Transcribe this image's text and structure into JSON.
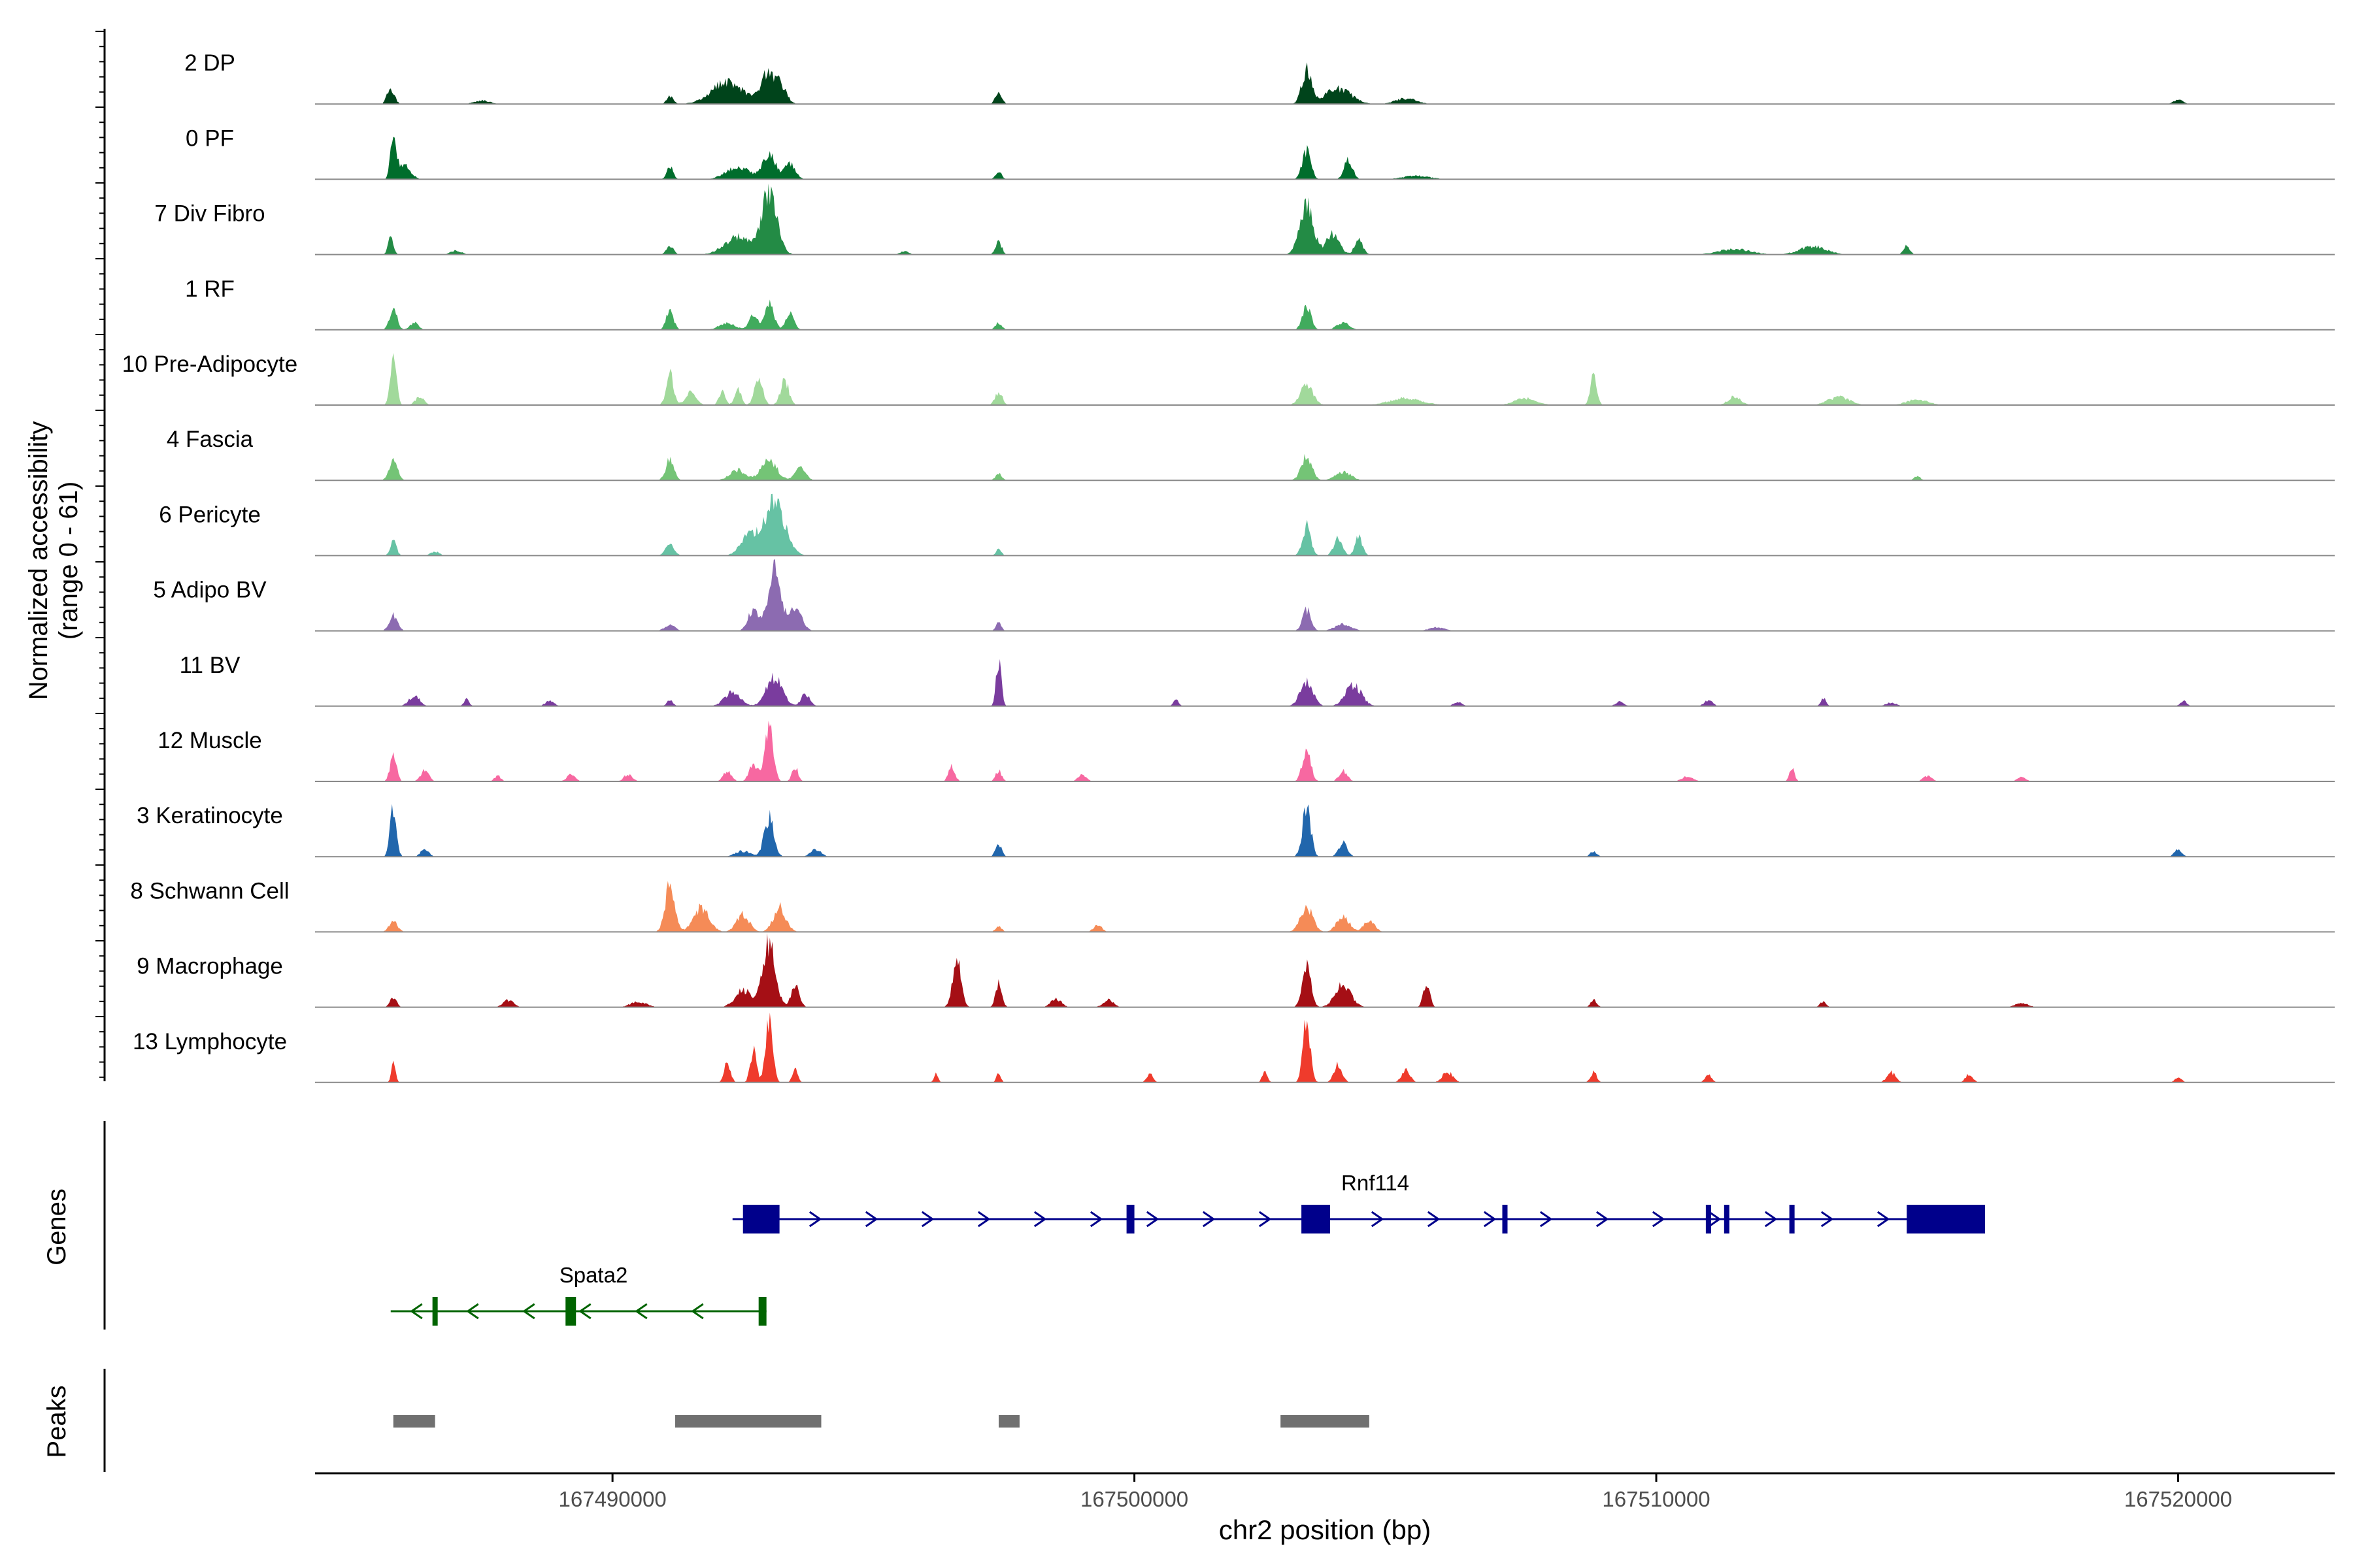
{
  "chart_data": {
    "type": "area",
    "title": "",
    "ylabel_line1": "Normalized accessibility",
    "ylabel_line2": "(range 0 - 61)",
    "y_range": [
      0,
      61
    ],
    "xlabel": "chr2 position (bp)",
    "xlim": [
      167484300,
      167523000
    ],
    "x_ticks": [
      167490000,
      167500000,
      167510000,
      167520000
    ],
    "x_tick_labels": [
      "167490000",
      "167500000",
      "167510000",
      "167520000"
    ],
    "tracks": [
      {
        "name": "2 DP",
        "color": "#00441b",
        "peaks": [
          [
            167485750,
            0.22,
            70
          ],
          [
            167487500,
            0.05,
            150
          ],
          [
            167491100,
            0.12,
            60
          ],
          [
            167492200,
            0.32,
            300
          ],
          [
            167492950,
            0.38,
            120
          ],
          [
            167493200,
            0.28,
            120
          ],
          [
            167497400,
            0.18,
            60
          ],
          [
            167503300,
            0.48,
            90
          ],
          [
            167503900,
            0.22,
            250
          ],
          [
            167505200,
            0.08,
            200
          ],
          [
            167520000,
            0.06,
            90
          ]
        ]
      },
      {
        "name": "0 PF",
        "color": "#006d2c",
        "peaks": [
          [
            167485800,
            0.7,
            50
          ],
          [
            167486000,
            0.22,
            120
          ],
          [
            167491100,
            0.18,
            60
          ],
          [
            167492400,
            0.18,
            220
          ],
          [
            167493000,
            0.38,
            120
          ],
          [
            167493400,
            0.22,
            100
          ],
          [
            167497400,
            0.1,
            60
          ],
          [
            167503300,
            0.42,
            80
          ],
          [
            167504100,
            0.28,
            80
          ],
          [
            167505400,
            0.05,
            250
          ]
        ]
      },
      {
        "name": "7 Div Fibro",
        "color": "#238b45",
        "peaks": [
          [
            167485750,
            0.25,
            50
          ],
          [
            167487000,
            0.06,
            100
          ],
          [
            167491100,
            0.12,
            70
          ],
          [
            167492400,
            0.25,
            250
          ],
          [
            167493000,
            0.85,
            150
          ],
          [
            167495600,
            0.05,
            80
          ],
          [
            167497400,
            0.18,
            60
          ],
          [
            167503300,
            0.72,
            130
          ],
          [
            167503800,
            0.3,
            120
          ],
          [
            167504300,
            0.2,
            80
          ],
          [
            167511500,
            0.08,
            300
          ],
          [
            167513000,
            0.12,
            250
          ],
          [
            167514800,
            0.12,
            60
          ]
        ]
      },
      {
        "name": "1 RF",
        "color": "#41ab5d",
        "peaks": [
          [
            167485800,
            0.32,
            70
          ],
          [
            167486200,
            0.1,
            80
          ],
          [
            167491100,
            0.28,
            70
          ],
          [
            167492200,
            0.1,
            150
          ],
          [
            167492700,
            0.22,
            80
          ],
          [
            167493000,
            0.38,
            90
          ],
          [
            167493400,
            0.22,
            80
          ],
          [
            167497400,
            0.1,
            60
          ],
          [
            167503300,
            0.35,
            80
          ],
          [
            167504000,
            0.1,
            120
          ]
        ]
      },
      {
        "name": "10 Pre-Adipocyte",
        "color": "#a1d99b",
        "peaks": [
          [
            167485800,
            0.65,
            60
          ],
          [
            167486300,
            0.12,
            80
          ],
          [
            167491100,
            0.45,
            70
          ],
          [
            167491500,
            0.18,
            100
          ],
          [
            167492100,
            0.2,
            60
          ],
          [
            167492400,
            0.25,
            60
          ],
          [
            167492800,
            0.35,
            80
          ],
          [
            167493300,
            0.35,
            80
          ],
          [
            167497400,
            0.18,
            70
          ],
          [
            167503300,
            0.3,
            120
          ],
          [
            167505200,
            0.1,
            300
          ],
          [
            167507500,
            0.1,
            200
          ],
          [
            167508800,
            0.42,
            60
          ],
          [
            167511500,
            0.12,
            120
          ],
          [
            167513500,
            0.12,
            200
          ],
          [
            167515000,
            0.08,
            200
          ]
        ]
      },
      {
        "name": "4 Fascia",
        "color": "#74c476",
        "peaks": [
          [
            167485800,
            0.28,
            80
          ],
          [
            167491100,
            0.3,
            80
          ],
          [
            167492400,
            0.15,
            150
          ],
          [
            167493000,
            0.28,
            150
          ],
          [
            167493600,
            0.18,
            100
          ],
          [
            167497400,
            0.1,
            60
          ],
          [
            167503300,
            0.35,
            100
          ],
          [
            167504000,
            0.12,
            150
          ],
          [
            167515000,
            0.06,
            60
          ]
        ]
      },
      {
        "name": "6 Pericyte",
        "color": "#66c2a4",
        "peaks": [
          [
            167485800,
            0.2,
            60
          ],
          [
            167486600,
            0.06,
            80
          ],
          [
            167491100,
            0.18,
            80
          ],
          [
            167492600,
            0.28,
            150
          ],
          [
            167493100,
            0.75,
            200
          ],
          [
            167497400,
            0.1,
            50
          ],
          [
            167503300,
            0.42,
            80
          ],
          [
            167503900,
            0.25,
            80
          ],
          [
            167504300,
            0.28,
            70
          ]
        ]
      },
      {
        "name": "5 Adipo BV",
        "color": "#8c6bb1",
        "peaks": [
          [
            167485800,
            0.22,
            80
          ],
          [
            167491100,
            0.08,
            100
          ],
          [
            167492700,
            0.3,
            100
          ],
          [
            167493100,
            0.9,
            120
          ],
          [
            167493500,
            0.35,
            120
          ],
          [
            167497400,
            0.12,
            50
          ],
          [
            167503300,
            0.3,
            80
          ],
          [
            167504000,
            0.1,
            150
          ],
          [
            167505800,
            0.05,
            150
          ]
        ]
      },
      {
        "name": "11 BV",
        "color": "#7a3c9e",
        "peaks": [
          [
            167486200,
            0.15,
            100
          ],
          [
            167487200,
            0.1,
            50
          ],
          [
            167488800,
            0.08,
            80
          ],
          [
            167491100,
            0.08,
            60
          ],
          [
            167492300,
            0.2,
            150
          ],
          [
            167493100,
            0.42,
            150
          ],
          [
            167493700,
            0.18,
            80
          ],
          [
            167497400,
            0.65,
            50
          ],
          [
            167500800,
            0.1,
            50
          ],
          [
            167503300,
            0.35,
            120
          ],
          [
            167504200,
            0.3,
            150
          ],
          [
            167506200,
            0.06,
            80
          ],
          [
            167509300,
            0.06,
            80
          ],
          [
            167511000,
            0.08,
            80
          ],
          [
            167513200,
            0.12,
            50
          ],
          [
            167514500,
            0.05,
            100
          ],
          [
            167520100,
            0.08,
            60
          ]
        ]
      },
      {
        "name": "12 Muscle",
        "color": "#f768a1",
        "peaks": [
          [
            167485800,
            0.4,
            60
          ],
          [
            167486400,
            0.15,
            80
          ],
          [
            167487800,
            0.08,
            60
          ],
          [
            167489200,
            0.1,
            80
          ],
          [
            167490300,
            0.1,
            80
          ],
          [
            167492200,
            0.15,
            80
          ],
          [
            167492700,
            0.25,
            80
          ],
          [
            167493000,
            0.75,
            80
          ],
          [
            167493500,
            0.2,
            60
          ],
          [
            167496500,
            0.22,
            60
          ],
          [
            167497400,
            0.15,
            60
          ],
          [
            167499000,
            0.1,
            80
          ],
          [
            167503300,
            0.45,
            80
          ],
          [
            167504000,
            0.15,
            80
          ],
          [
            167510600,
            0.08,
            100
          ],
          [
            167512600,
            0.18,
            50
          ],
          [
            167515200,
            0.08,
            80
          ],
          [
            167517000,
            0.06,
            80
          ]
        ]
      },
      {
        "name": "3 Keratinocyte",
        "color": "#2166ac",
        "peaks": [
          [
            167485800,
            0.68,
            60
          ],
          [
            167486400,
            0.1,
            80
          ],
          [
            167492500,
            0.08,
            150
          ],
          [
            167493000,
            0.55,
            90
          ],
          [
            167493900,
            0.1,
            100
          ],
          [
            167497400,
            0.18,
            60
          ],
          [
            167503300,
            0.68,
            80
          ],
          [
            167504000,
            0.2,
            80
          ],
          [
            167508800,
            0.08,
            60
          ],
          [
            167520000,
            0.1,
            70
          ]
        ]
      },
      {
        "name": "8 Schwann Cell",
        "color": "#f58b57",
        "peaks": [
          [
            167485800,
            0.15,
            80
          ],
          [
            167491100,
            0.68,
            90
          ],
          [
            167491700,
            0.35,
            150
          ],
          [
            167492500,
            0.25,
            120
          ],
          [
            167493200,
            0.35,
            120
          ],
          [
            167497400,
            0.08,
            60
          ],
          [
            167499300,
            0.1,
            80
          ],
          [
            167503300,
            0.35,
            120
          ],
          [
            167504000,
            0.22,
            120
          ],
          [
            167504500,
            0.18,
            100
          ]
        ]
      },
      {
        "name": "9 Macrophage",
        "color": "#a50f15",
        "peaks": [
          [
            167485800,
            0.15,
            60
          ],
          [
            167488000,
            0.1,
            100
          ],
          [
            167490500,
            0.08,
            150
          ],
          [
            167492500,
            0.25,
            150
          ],
          [
            167493000,
            0.9,
            120
          ],
          [
            167493500,
            0.3,
            80
          ],
          [
            167496600,
            0.65,
            80
          ],
          [
            167497400,
            0.35,
            60
          ],
          [
            167498500,
            0.12,
            100
          ],
          [
            167499500,
            0.1,
            100
          ],
          [
            167503300,
            0.62,
            80
          ],
          [
            167504000,
            0.32,
            150
          ],
          [
            167505600,
            0.38,
            60
          ],
          [
            167508800,
            0.1,
            60
          ],
          [
            167513200,
            0.08,
            60
          ],
          [
            167517000,
            0.06,
            120
          ]
        ]
      },
      {
        "name": "13 Lymphocyte",
        "color": "#ef3b2c",
        "peaks": [
          [
            167485800,
            0.28,
            40
          ],
          [
            167492200,
            0.3,
            60
          ],
          [
            167492700,
            0.45,
            60
          ],
          [
            167493000,
            0.85,
            70
          ],
          [
            167493500,
            0.2,
            50
          ],
          [
            167496200,
            0.12,
            40
          ],
          [
            167497400,
            0.15,
            40
          ],
          [
            167500300,
            0.12,
            60
          ],
          [
            167502500,
            0.15,
            50
          ],
          [
            167503300,
            0.9,
            70
          ],
          [
            167503900,
            0.25,
            80
          ],
          [
            167505200,
            0.18,
            80
          ],
          [
            167506000,
            0.15,
            100
          ],
          [
            167508800,
            0.15,
            60
          ],
          [
            167511000,
            0.12,
            60
          ],
          [
            167514500,
            0.15,
            80
          ],
          [
            167516000,
            0.12,
            70
          ],
          [
            167520000,
            0.08,
            60
          ]
        ]
      }
    ],
    "genes_label": "Genes",
    "genes": [
      {
        "name": "Rnf114",
        "strand": "+",
        "color": "#00008b",
        "start": 167492300,
        "end": 167516300,
        "exons": [
          [
            167492500,
            167493200
          ],
          [
            167499850,
            167500000
          ],
          [
            167503200,
            167503750
          ],
          [
            167507050,
            167507150
          ],
          [
            167510950,
            167511050
          ],
          [
            167511300,
            167511400
          ],
          [
            167512550,
            167512650
          ],
          [
            167514800,
            167516300
          ]
        ]
      },
      {
        "name": "Spata2",
        "strand": "-",
        "color": "#006400",
        "start": 167485750,
        "end": 167492950,
        "exons": [
          [
            167486550,
            167486600
          ],
          [
            167489100,
            167489300
          ],
          [
            167492800,
            167492950
          ]
        ]
      }
    ],
    "peaks_label": "Peaks",
    "peak_regions": [
      [
        167485800,
        167486600
      ],
      [
        167491200,
        167494000
      ],
      [
        167497400,
        167497800
      ],
      [
        167502800,
        167504500
      ]
    ],
    "peak_color": "#707070"
  }
}
